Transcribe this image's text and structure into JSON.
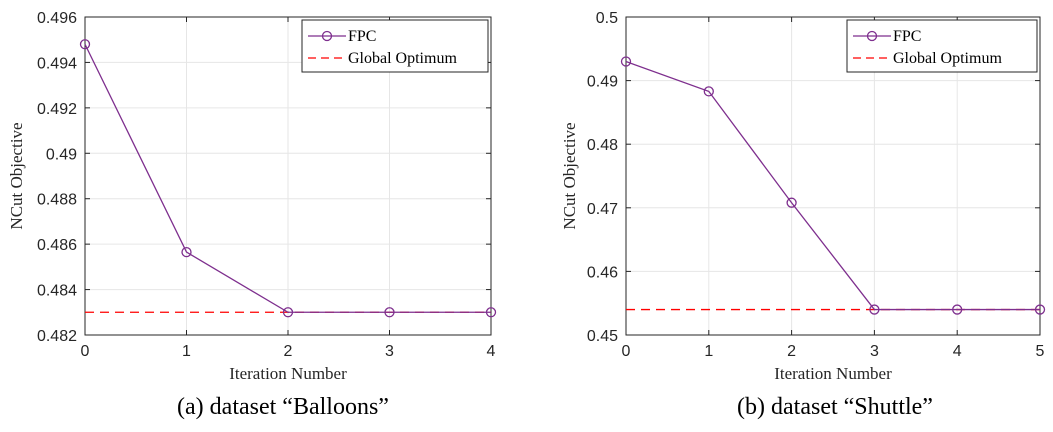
{
  "chart_data": [
    {
      "type": "line",
      "caption": "(a)  dataset “Balloons”",
      "xlabel": "Iteration Number",
      "ylabel": "NCut Objective",
      "xlim": [
        0,
        4
      ],
      "ylim": [
        0.482,
        0.496
      ],
      "xticks": [
        0,
        1,
        2,
        3,
        4
      ],
      "yticks": [
        0.482,
        0.484,
        0.486,
        0.488,
        0.49,
        0.492,
        0.494,
        0.496
      ],
      "ytick_labels": [
        "0.482",
        "0.484",
        "0.486",
        "0.488",
        "0.49",
        "0.492",
        "0.494",
        "0.496"
      ],
      "grid": true,
      "legend_position": "top-right",
      "series": [
        {
          "name": "FPC",
          "color": "#7e2f8e",
          "style": "solid-circle-markers",
          "x": [
            0,
            1,
            2,
            3,
            4
          ],
          "values": [
            0.4948,
            0.48565,
            0.483,
            0.483,
            0.483
          ]
        },
        {
          "name": "Global Optimum",
          "color": "#ff0000",
          "style": "dashed",
          "x": [
            0,
            4
          ],
          "values": [
            0.483,
            0.483
          ]
        }
      ]
    },
    {
      "type": "line",
      "caption": "(b)  dataset “Shuttle”",
      "xlabel": "Iteration Number",
      "ylabel": "NCut Objective",
      "xlim": [
        0,
        5
      ],
      "ylim": [
        0.45,
        0.5
      ],
      "xticks": [
        0,
        1,
        2,
        3,
        4,
        5
      ],
      "yticks": [
        0.45,
        0.46,
        0.47,
        0.48,
        0.49,
        0.5
      ],
      "ytick_labels": [
        "0.45",
        "0.46",
        "0.47",
        "0.48",
        "0.49",
        "0.5"
      ],
      "grid": true,
      "legend_position": "top-right",
      "series": [
        {
          "name": "FPC",
          "color": "#7e2f8e",
          "style": "solid-circle-markers",
          "x": [
            0,
            1,
            2,
            3,
            4,
            5
          ],
          "values": [
            0.493,
            0.4883,
            0.4708,
            0.454,
            0.454,
            0.454
          ]
        },
        {
          "name": "Global Optimum",
          "color": "#ff0000",
          "style": "dashed",
          "x": [
            0,
            5
          ],
          "values": [
            0.454,
            0.454
          ]
        }
      ]
    }
  ]
}
